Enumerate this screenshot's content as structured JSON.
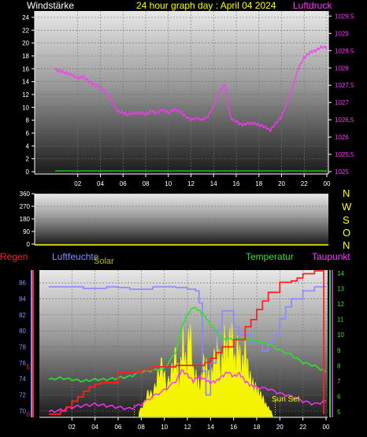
{
  "header": {
    "left_label": "Windstärke",
    "title": "24 hour graph day : April 04 2024",
    "right_label": "Luftdruck"
  },
  "colors": {
    "background": "#000000",
    "wind": "#ffffff",
    "pressure": "#ff33ff",
    "title": "#ffff00",
    "rain": "#ff2020",
    "humidity": "#8888ff",
    "solar": "#ffff00",
    "temperature": "#33dd33",
    "dewpoint": "#ff33ff",
    "axis": "#ffffff"
  },
  "labels": {
    "rain": "Regen",
    "humidity": "Luftfeuchte",
    "solar": "Solar",
    "temperature": "Temperatur",
    "dewpoint": "Taupunkt",
    "sun_set": "Sun Set"
  },
  "compass": [
    "N",
    "W",
    "S",
    "O",
    "N"
  ],
  "chart_data": [
    {
      "id": "wind_pressure",
      "type": "line",
      "x_ticks": [
        "02",
        "04",
        "06",
        "08",
        "10",
        "12",
        "14",
        "16",
        "18",
        "20",
        "22",
        "00"
      ],
      "y_left": {
        "label": "Windstärke",
        "ticks": [
          "0",
          "2",
          "4",
          "6",
          "8",
          "10",
          "12",
          "14",
          "16",
          "18",
          "20",
          "22",
          "24"
        ],
        "range": [
          0,
          24
        ]
      },
      "y_right": {
        "label": "Luftdruck",
        "ticks": [
          "1025",
          "1025,5",
          "1026",
          "1026,5",
          "1027",
          "1027,5",
          "1028",
          "1028,5",
          "1029",
          "1029,5"
        ],
        "range": [
          1025,
          1029.6
        ]
      },
      "series": [
        {
          "name": "Luftdruck",
          "axis": "right",
          "x": [
            0,
            0.5,
            1,
            1.5,
            2,
            2.5,
            3,
            3.5,
            4,
            4.5,
            5,
            5.5,
            6,
            6.5,
            7,
            7.5,
            8,
            8.5,
            9,
            9.5,
            10,
            10.5,
            11,
            11.5,
            12,
            12.5,
            13,
            13.5,
            14,
            14.5,
            15,
            15.5,
            16,
            16.5,
            17,
            17.5,
            18,
            18.5,
            19,
            19.5,
            20,
            20.5,
            21,
            21.5,
            22,
            22.5,
            23,
            23.5,
            24
          ],
          "y": [
            1027.95,
            1027.9,
            1027.85,
            1027.8,
            1027.7,
            1027.75,
            1027.6,
            1027.5,
            1027.45,
            1027.3,
            1027.05,
            1026.75,
            1026.7,
            1026.65,
            1026.7,
            1026.7,
            1026.65,
            1026.75,
            1026.7,
            1026.8,
            1026.7,
            1026.8,
            1026.75,
            1026.6,
            1026.5,
            1026.55,
            1026.5,
            1026.6,
            1026.9,
            1027.3,
            1027.55,
            1026.55,
            1026.45,
            1026.35,
            1026.4,
            1026.4,
            1026.35,
            1026.3,
            1026.2,
            1026.4,
            1026.6,
            1027.0,
            1027.45,
            1028.0,
            1028.3,
            1028.45,
            1028.5,
            1028.6,
            1028.6
          ]
        },
        {
          "name": "Windstärke",
          "axis": "left",
          "x": [
            0,
            24
          ],
          "y": [
            0,
            0
          ]
        }
      ]
    },
    {
      "id": "wind_direction",
      "type": "line",
      "y_ticks": [
        "0",
        "90",
        "180",
        "270",
        "360"
      ],
      "range": [
        0,
        360
      ],
      "series": []
    },
    {
      "id": "weather",
      "type": "line",
      "x_ticks": [
        "02",
        "04",
        "06",
        "08",
        "10",
        "12",
        "14",
        "16",
        "18",
        "20",
        "22",
        "00"
      ],
      "y_left": {
        "label": "Luftfeuchte",
        "ticks": [
          "70",
          "72",
          "74",
          "76",
          "78",
          "80",
          "82",
          "84",
          "86"
        ],
        "range": [
          69.5,
          87.2
        ]
      },
      "y_right": {
        "label": "Temperatur",
        "ticks": [
          "5",
          "6",
          "7",
          "8",
          "9",
          "10",
          "11",
          "12",
          "13",
          "14"
        ],
        "range": [
          4.8,
          14.1
        ]
      },
      "rain_ticks": [
        "0",
        "5"
      ],
      "annotation": "Sun Set",
      "series": [
        {
          "name": "Luftfeuchte",
          "axis": "left",
          "x": [
            0,
            2,
            3,
            4,
            5,
            6,
            7,
            8,
            9,
            10,
            11,
            12,
            12.7,
            13,
            13.3,
            13.6,
            14,
            14.5,
            15,
            15.5,
            16,
            16.5,
            17,
            17.5,
            18,
            18.5,
            19,
            19.5,
            20,
            20.5,
            21,
            22,
            23,
            24
          ],
          "y": [
            85.5,
            85.5,
            85.3,
            85.3,
            85.5,
            85.4,
            85.2,
            85.2,
            85.5,
            85.5,
            85.4,
            85.2,
            85.0,
            83.5,
            75.0,
            72.0,
            76.0,
            80.0,
            82.5,
            82.5,
            80.5,
            79.5,
            79.5,
            78.5,
            78.5,
            77.5,
            78.5,
            79.5,
            81.5,
            83.0,
            84.0,
            85.0,
            85.5,
            85.5
          ]
        },
        {
          "name": "Temperatur",
          "axis": "right",
          "x": [
            0,
            1,
            2,
            3,
            4,
            5,
            6,
            7,
            8,
            9,
            10,
            11,
            11.5,
            12,
            12.5,
            13,
            13.5,
            14,
            14.5,
            15,
            16,
            17,
            18,
            19,
            20,
            21,
            22,
            23,
            24
          ],
          "y": [
            7.1,
            7.2,
            7.1,
            7.0,
            7.1,
            7.1,
            7.2,
            7.3,
            7.6,
            7.7,
            7.8,
            8.9,
            10.5,
            11.3,
            11.8,
            11.6,
            11.2,
            10.7,
            10.2,
            9.8,
            9.7,
            9.8,
            9.6,
            9.4,
            9.0,
            8.7,
            8.2,
            8.0,
            7.6
          ]
        },
        {
          "name": "Taupunkt",
          "axis": "right",
          "x": [
            0,
            1,
            2,
            3,
            4,
            5,
            6,
            7,
            8,
            9,
            10,
            11,
            11.5,
            12,
            12.5,
            13,
            13.5,
            14,
            14.5,
            15,
            15.5,
            16,
            16.5,
            17,
            17.5,
            18,
            19,
            20,
            21,
            22,
            23,
            24
          ],
          "y": [
            5.0,
            5.1,
            5.3,
            5.4,
            5.5,
            5.4,
            5.3,
            5.2,
            5.5,
            6.0,
            6.4,
            7.0,
            7.7,
            7.4,
            7.0,
            7.3,
            7.1,
            6.9,
            7.0,
            7.3,
            7.6,
            7.3,
            7.5,
            7.0,
            6.7,
            6.6,
            6.5,
            6.2,
            6.0,
            5.7,
            5.5,
            5.7
          ]
        },
        {
          "name": "Regen",
          "axis": "rain",
          "x": [
            0,
            0.5,
            1,
            1.5,
            2,
            2.5,
            3,
            3.5,
            4,
            4.5,
            5,
            6,
            7,
            8,
            9,
            10,
            11,
            12,
            12.5,
            13,
            13.5,
            14,
            14.5,
            15,
            16,
            17,
            17.5,
            18,
            18.5,
            19,
            20,
            21,
            21.5,
            22,
            23,
            23.8,
            23.8
          ],
          "y": [
            0,
            0,
            0.02,
            0.05,
            0.09,
            0.12,
            0.16,
            0.19,
            0.21,
            0.22,
            0.22,
            0.29,
            0.29,
            0.31,
            0.33,
            0.33,
            0.34,
            0.34,
            0.34,
            0.34,
            0.36,
            0.39,
            0.43,
            0.47,
            0.52,
            0.61,
            0.66,
            0.73,
            0.79,
            0.85,
            0.92,
            0.93,
            0.95,
            0.98,
            1.0,
            1.0,
            0.0
          ]
        },
        {
          "name": "Solar",
          "axis": "none",
          "x": [
            7.8,
            8.2,
            8.6,
            9,
            9.4,
            9.8,
            10.2,
            10.6,
            11,
            11.3,
            11.6,
            11.9,
            12.2,
            12.5,
            12.8,
            13.1,
            13.4,
            13.7,
            14,
            14.3,
            14.6,
            14.9,
            15.2,
            15.5,
            15.8,
            16.1,
            16.4,
            16.7,
            17,
            17.3,
            17.6,
            17.9,
            18.2,
            18.5,
            18.8,
            19.1,
            19.4
          ],
          "y": [
            0.05,
            0.12,
            0.25,
            0.22,
            0.4,
            0.55,
            0.3,
            0.45,
            0.65,
            0.35,
            0.8,
            0.5,
            0.95,
            0.45,
            0.4,
            0.3,
            0.55,
            0.5,
            0.35,
            0.6,
            0.75,
            0.45,
            0.8,
            0.65,
            0.9,
            0.55,
            0.75,
            0.5,
            0.7,
            0.45,
            0.35,
            0.3,
            0.25,
            0.2,
            0.12,
            0.08,
            0.02
          ]
        }
      ]
    }
  ]
}
